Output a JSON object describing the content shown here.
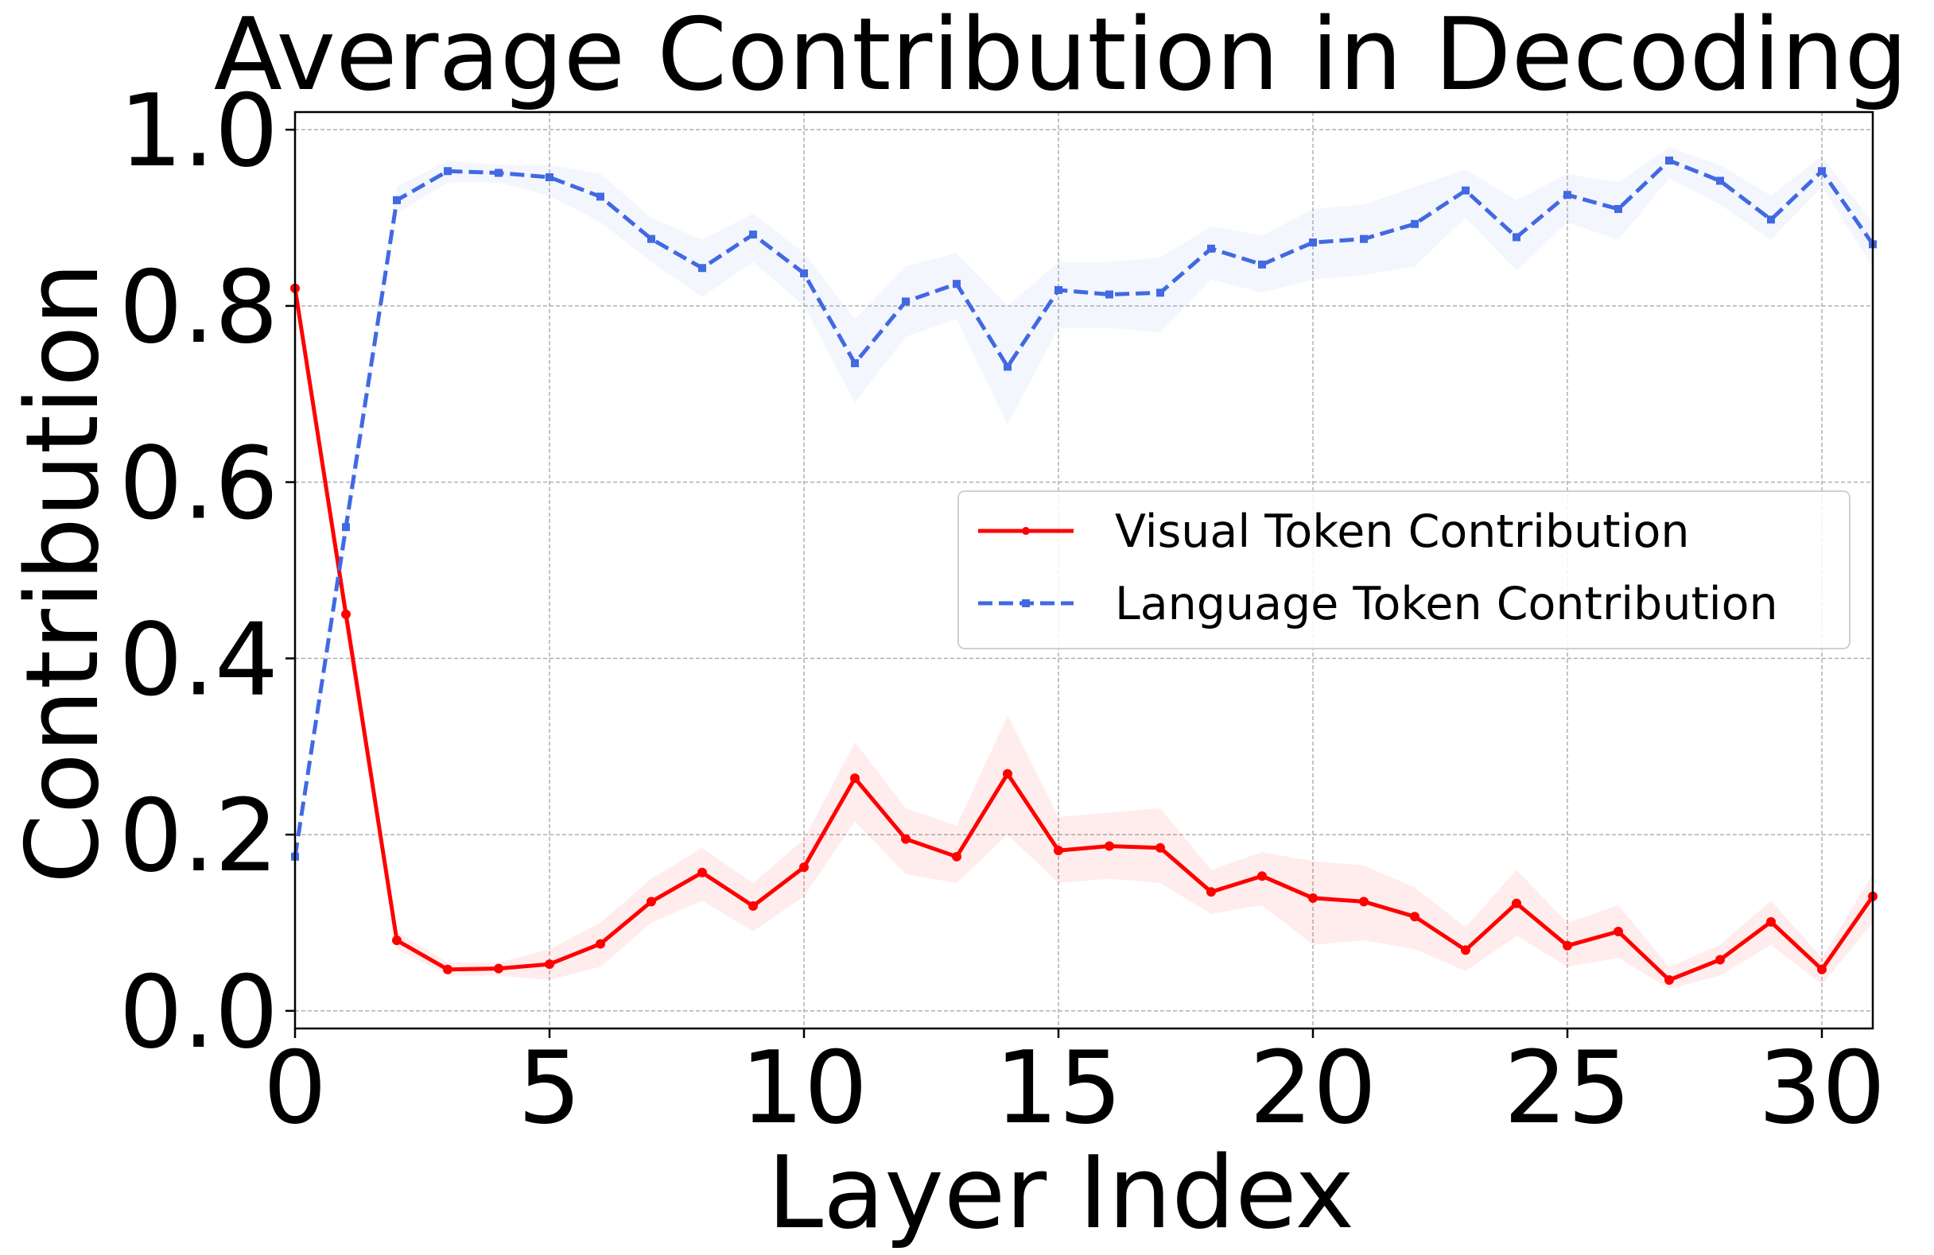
{
  "chart_data": {
    "type": "line",
    "title": "Average Contribution in Decoding",
    "xlabel": "Layer Index",
    "ylabel": "Contribution",
    "xlim": [
      0,
      31
    ],
    "ylim": [
      -0.02,
      1.02
    ],
    "xticks": [
      0,
      5,
      10,
      15,
      20,
      25,
      30
    ],
    "yticks": [
      0.0,
      0.2,
      0.4,
      0.6,
      0.8,
      1.0
    ],
    "xtick_labels": [
      "0",
      "5",
      "10",
      "15",
      "20",
      "25",
      "30"
    ],
    "ytick_labels": [
      "0.0",
      "0.2",
      "0.4",
      "0.6",
      "0.8",
      "1.0"
    ],
    "grid": true,
    "legend_position": "center-right",
    "x": [
      0,
      1,
      2,
      3,
      4,
      5,
      6,
      7,
      8,
      9,
      10,
      11,
      12,
      13,
      14,
      15,
      16,
      17,
      18,
      19,
      20,
      21,
      22,
      23,
      24,
      25,
      26,
      27,
      28,
      29,
      30,
      31
    ],
    "series": [
      {
        "name": "Visual Token Contribution",
        "color": "#ff0000",
        "line_style": "solid",
        "marker": "circle",
        "values": [
          0.82,
          0.45,
          0.08,
          0.047,
          0.048,
          0.053,
          0.076,
          0.124,
          0.157,
          0.119,
          0.163,
          0.264,
          0.195,
          0.175,
          0.269,
          0.182,
          0.187,
          0.185,
          0.135,
          0.153,
          0.128,
          0.124,
          0.107,
          0.069,
          0.122,
          0.074,
          0.09,
          0.035,
          0.058,
          0.101,
          0.047,
          0.13
        ],
        "lower": [
          0.82,
          0.43,
          0.07,
          0.04,
          0.04,
          0.035,
          0.05,
          0.1,
          0.125,
          0.09,
          0.13,
          0.215,
          0.155,
          0.145,
          0.2,
          0.145,
          0.15,
          0.145,
          0.11,
          0.12,
          0.075,
          0.08,
          0.07,
          0.045,
          0.085,
          0.05,
          0.06,
          0.025,
          0.04,
          0.075,
          0.03,
          0.1
        ],
        "upper": [
          0.82,
          0.47,
          0.09,
          0.055,
          0.055,
          0.07,
          0.1,
          0.15,
          0.185,
          0.145,
          0.195,
          0.305,
          0.23,
          0.21,
          0.335,
          0.22,
          0.225,
          0.23,
          0.16,
          0.18,
          0.17,
          0.165,
          0.14,
          0.095,
          0.16,
          0.1,
          0.12,
          0.05,
          0.075,
          0.125,
          0.06,
          0.155
        ]
      },
      {
        "name": "Language Token Contribution",
        "color": "#4169e1",
        "line_style": "dashed",
        "marker": "square",
        "values": [
          0.175,
          0.549,
          0.92,
          0.953,
          0.951,
          0.946,
          0.924,
          0.876,
          0.843,
          0.881,
          0.837,
          0.735,
          0.805,
          0.825,
          0.731,
          0.818,
          0.813,
          0.815,
          0.865,
          0.847,
          0.872,
          0.876,
          0.893,
          0.931,
          0.878,
          0.926,
          0.91,
          0.965,
          0.942,
          0.898,
          0.953,
          0.87
        ],
        "lower": [
          0.175,
          0.53,
          0.905,
          0.94,
          0.94,
          0.925,
          0.895,
          0.85,
          0.81,
          0.85,
          0.8,
          0.69,
          0.765,
          0.785,
          0.665,
          0.775,
          0.775,
          0.77,
          0.83,
          0.815,
          0.83,
          0.835,
          0.845,
          0.9,
          0.84,
          0.895,
          0.875,
          0.945,
          0.915,
          0.875,
          0.935,
          0.845
        ],
        "upper": [
          0.175,
          0.57,
          0.935,
          0.965,
          0.96,
          0.96,
          0.95,
          0.9,
          0.875,
          0.905,
          0.86,
          0.785,
          0.845,
          0.86,
          0.8,
          0.85,
          0.85,
          0.855,
          0.89,
          0.88,
          0.91,
          0.915,
          0.935,
          0.955,
          0.92,
          0.95,
          0.94,
          0.98,
          0.96,
          0.925,
          0.97,
          0.895
        ]
      }
    ]
  }
}
